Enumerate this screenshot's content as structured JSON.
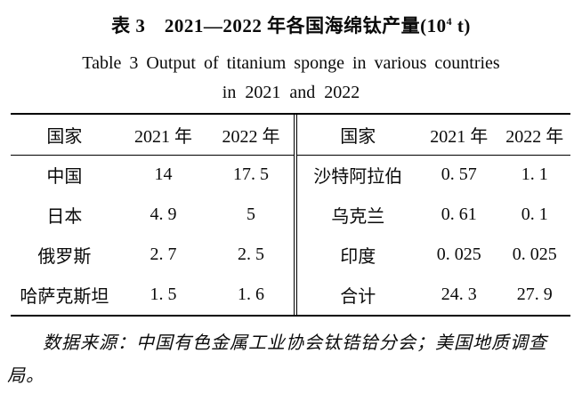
{
  "title": {
    "zh_prefix": "表 3　2021—2022 年各国海绵钛产量(10",
    "zh_superscript": "4",
    "zh_suffix": " t)",
    "en_line1": "Table 3 Output of titanium sponge in various countries",
    "en_line2": "in 2021 and 2022"
  },
  "table": {
    "left": {
      "headers": [
        "国家",
        "2021 年",
        "2022 年"
      ],
      "rows": [
        [
          "中国",
          "14",
          "17. 5"
        ],
        [
          "日本",
          "4. 9",
          "5"
        ],
        [
          "俄罗斯",
          "2. 7",
          "2. 5"
        ],
        [
          "哈萨克斯坦",
          "1. 5",
          "1. 6"
        ]
      ]
    },
    "right": {
      "headers": [
        "国家",
        "2021 年",
        "2022 年"
      ],
      "rows": [
        [
          "沙特阿拉伯",
          "0. 57",
          "1. 1"
        ],
        [
          "乌克兰",
          "0. 61",
          "0. 1"
        ],
        [
          "印度",
          "0. 025",
          "0. 025"
        ],
        [
          "合计",
          "24. 3",
          "27. 9"
        ]
      ]
    }
  },
  "note": {
    "text": "数据来源：中国有色金属工业协会钛锆铪分会；美国地质调查局。"
  },
  "colors": {
    "background": "#ffffff",
    "text": "#0a0a0a",
    "border": "#000000"
  }
}
